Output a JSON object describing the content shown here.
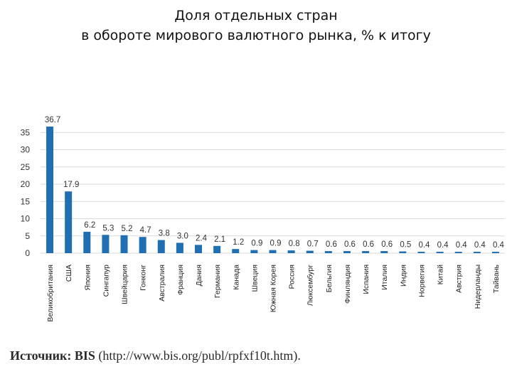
{
  "title": {
    "line1": "Доля отдельных стран",
    "line2": "в обороте мирового валютного рынка, %  к итогу"
  },
  "source": {
    "label": "Источник: BIS",
    "url": "(http://www.bis.org/publ/rpfxf10t.htm)."
  },
  "colors": {
    "bar": "#1f6fb2",
    "grid": "#d9d9d9"
  },
  "chart_data": {
    "type": "bar",
    "categories": [
      "Великобритания",
      "США",
      "Япония",
      "Сингапур",
      "Швейцария",
      "Гонконг",
      "Австралия",
      "Франция",
      "Дания",
      "Германия",
      "Канада",
      "Швеция",
      "Южная Корея",
      "Россия",
      "Люксембург",
      "Бельгия",
      "Финляндия",
      "Испания",
      "Италия",
      "Индия",
      "Норвегия",
      "Китай",
      "Австрия",
      "Нидерланды",
      "Тайвань"
    ],
    "values": [
      36.7,
      17.9,
      6.2,
      5.3,
      5.2,
      4.7,
      3.8,
      3.0,
      2.4,
      2.1,
      1.2,
      0.9,
      0.9,
      0.8,
      0.7,
      0.6,
      0.6,
      0.6,
      0.6,
      0.5,
      0.4,
      0.4,
      0.4,
      0.4,
      0.4
    ],
    "data_labels": [
      "36.7",
      "17.9",
      "6.2",
      "5.3",
      "5.2",
      "4.7",
      "3.8",
      "3.0",
      "2.4",
      "2.1",
      "1.2",
      "0.9",
      "0.9",
      "0.8",
      "0.7",
      "0.6",
      "0.6",
      "0.6",
      "0.6",
      "0.5",
      "0.4",
      "0.4",
      "0.4",
      "0.4",
      "0.4"
    ],
    "yticks": [
      0,
      5,
      10,
      15,
      20,
      25,
      30,
      35
    ],
    "ylim": [
      0,
      38
    ],
    "grid": true,
    "legend": "none"
  }
}
